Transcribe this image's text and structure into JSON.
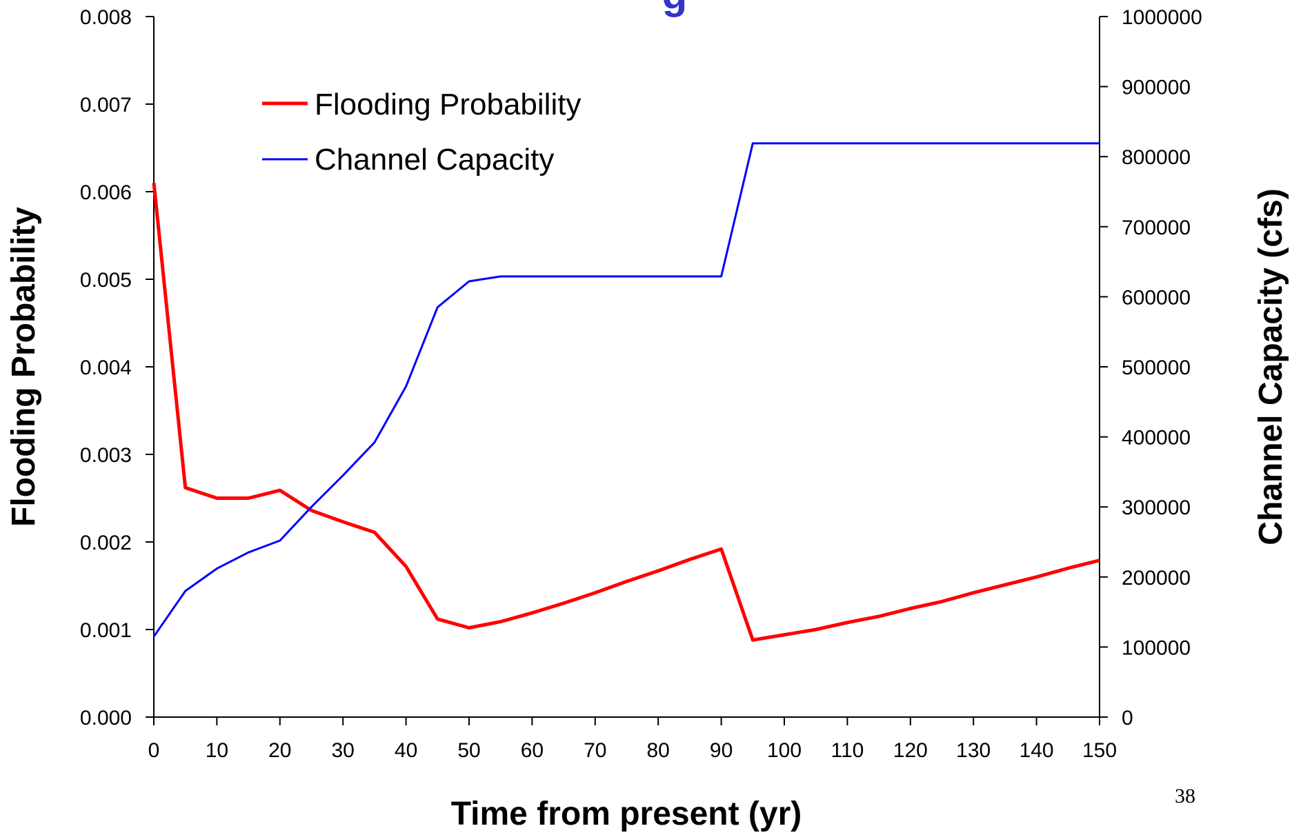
{
  "slide": {
    "title_fragment": "g",
    "page_number": "38"
  },
  "chart_data": {
    "type": "line",
    "xlabel": "Time from present (yr)",
    "ylabel_left": "Flooding Probability",
    "ylabel_right": "Channel Capacity (cfs)",
    "xlim": [
      0,
      150
    ],
    "ylim_left": [
      0,
      0.008
    ],
    "ylim_right": [
      0,
      1000000
    ],
    "x_ticks": [
      "0",
      "10",
      "20",
      "30",
      "40",
      "50",
      "60",
      "70",
      "80",
      "90",
      "100",
      "110",
      "120",
      "130",
      "140",
      "150"
    ],
    "y_ticks_left": [
      "0.000",
      "0.001",
      "0.002",
      "0.003",
      "0.004",
      "0.005",
      "0.006",
      "0.007",
      "0.008"
    ],
    "y_ticks_right": [
      "0",
      "100000",
      "200000",
      "300000",
      "400000",
      "500000",
      "600000",
      "700000",
      "800000",
      "900000",
      "1000000"
    ],
    "grid": false,
    "legend_position": "top-left",
    "series": [
      {
        "name": "Flooding Probability",
        "axis": "left",
        "color": "#ff0000",
        "x": [
          0,
          5,
          10,
          15,
          20,
          25,
          30,
          35,
          40,
          45,
          50,
          55,
          60,
          65,
          70,
          75,
          80,
          85,
          90,
          95,
          100,
          105,
          110,
          115,
          120,
          125,
          130,
          135,
          140,
          145,
          150
        ],
        "values": [
          0.0061,
          0.00262,
          0.0025,
          0.0025,
          0.00259,
          0.00236,
          0.00223,
          0.00211,
          0.00172,
          0.00112,
          0.00102,
          0.00109,
          0.00119,
          0.0013,
          0.00142,
          0.00155,
          0.00167,
          0.0018,
          0.00192,
          0.00088,
          0.00094,
          0.001,
          0.00108,
          0.00115,
          0.00124,
          0.00132,
          0.00142,
          0.00151,
          0.0016,
          0.0017,
          0.00179
        ]
      },
      {
        "name": "Channel Capacity",
        "axis": "right",
        "color": "#0000ff",
        "x": [
          0,
          5,
          10,
          15,
          20,
          25,
          30,
          35,
          40,
          45,
          50,
          55,
          60,
          65,
          70,
          75,
          80,
          85,
          90,
          95,
          100,
          105,
          110,
          115,
          120,
          125,
          130,
          135,
          140,
          145,
          150
        ],
        "values": [
          115000,
          180000,
          212000,
          235000,
          252000,
          300000,
          345000,
          392000,
          472000,
          585000,
          622000,
          629000,
          629000,
          629000,
          629000,
          629000,
          629000,
          629000,
          629000,
          819000,
          819000,
          819000,
          819000,
          819000,
          819000,
          819000,
          819000,
          819000,
          819000,
          819000,
          819000
        ]
      }
    ]
  }
}
